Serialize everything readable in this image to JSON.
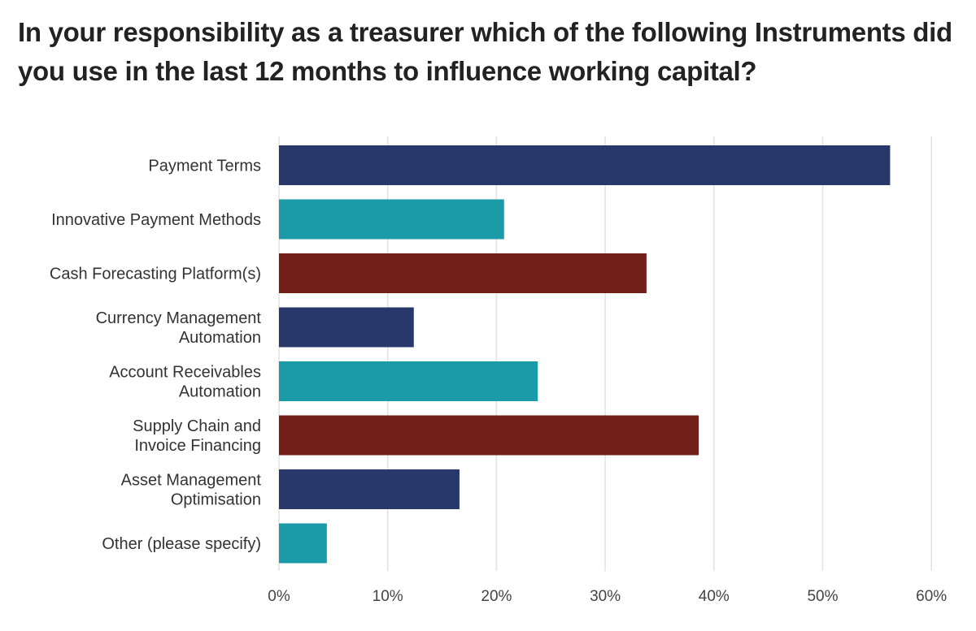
{
  "chart_data": {
    "type": "bar",
    "orientation": "horizontal",
    "title": "In your responsibility as a treasurer which of the following Instruments did you use in the last 12 months to influence working capital?",
    "xlabel": "",
    "ylabel": "",
    "categories": [
      [
        "Payment Terms"
      ],
      [
        "Innovative Payment Methods"
      ],
      [
        "Cash Forecasting Platform(s)"
      ],
      [
        "Currency Management",
        "Automation"
      ],
      [
        "Account Receivables",
        "Automation"
      ],
      [
        "Supply Chain and",
        "Invoice Financing"
      ],
      [
        "Asset Management",
        "Optimisation"
      ],
      [
        "Other (please specify)"
      ]
    ],
    "values": [
      56.2,
      20.7,
      33.8,
      12.4,
      23.8,
      38.6,
      16.6,
      4.4
    ],
    "bar_colors": [
      "#28386a",
      "#1b9aa8",
      "#731f19",
      "#28386a",
      "#1b9aa8",
      "#731f19",
      "#28386a",
      "#1b9aa8"
    ],
    "xlim": [
      0,
      60
    ],
    "ticks": [
      0,
      10,
      20,
      30,
      40,
      50,
      60
    ],
    "tick_labels": [
      "0%",
      "10%",
      "20%",
      "30%",
      "40%",
      "50%",
      "60%"
    ],
    "grid": true,
    "legend": "none"
  }
}
